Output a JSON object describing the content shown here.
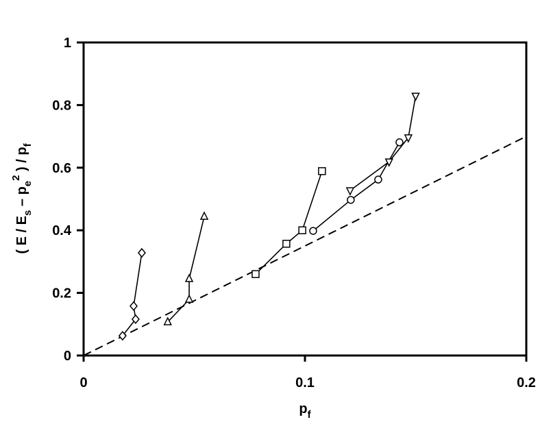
{
  "chart_data": {
    "type": "line",
    "xlabel": [
      {
        "t": "p"
      },
      {
        "sub": "f"
      }
    ],
    "ylabel": [
      {
        "t": "( E / E"
      },
      {
        "sub": "s"
      },
      {
        "t": " – p"
      },
      {
        "sub": "e"
      },
      {
        "sup": "2"
      },
      {
        "t": " ) / p"
      },
      {
        "sub": "f"
      }
    ],
    "xlim": [
      0,
      0.2
    ],
    "xticks": [
      0,
      0.1,
      0.2
    ],
    "ylim": [
      0,
      1
    ],
    "yticks": [
      0,
      0.2,
      0.4,
      0.6,
      0.8,
      1
    ],
    "series": [
      {
        "marker": "diamond",
        "color": "#000000",
        "x": [
          0.0176,
          0.0235,
          0.0226,
          0.0263
        ],
        "values": [
          0.063,
          0.116,
          0.158,
          0.328
        ]
      },
      {
        "marker": "triangle-up",
        "color": "#000000",
        "x": [
          0.038,
          0.0477,
          0.0477,
          0.0545
        ],
        "values": [
          0.107,
          0.179,
          0.245,
          0.444
        ]
      },
      {
        "marker": "square",
        "color": "#000000",
        "x": [
          0.0777,
          0.0916,
          0.0988,
          0.1077
        ],
        "values": [
          0.26,
          0.357,
          0.4,
          0.589
        ]
      },
      {
        "marker": "circle",
        "color": "#000000",
        "x": [
          0.1037,
          0.1207,
          0.1331,
          0.1427
        ],
        "values": [
          0.398,
          0.497,
          0.562,
          0.681
        ]
      },
      {
        "marker": "triangle-down",
        "color": "#000000",
        "x": [
          0.1204,
          0.138,
          0.1467,
          0.15
        ],
        "values": [
          0.527,
          0.619,
          0.696,
          0.829
        ]
      }
    ],
    "reference_line": {
      "style": "dashed",
      "color": "#000000",
      "x": [
        0,
        0.2
      ],
      "values": [
        0,
        0.7
      ]
    }
  }
}
